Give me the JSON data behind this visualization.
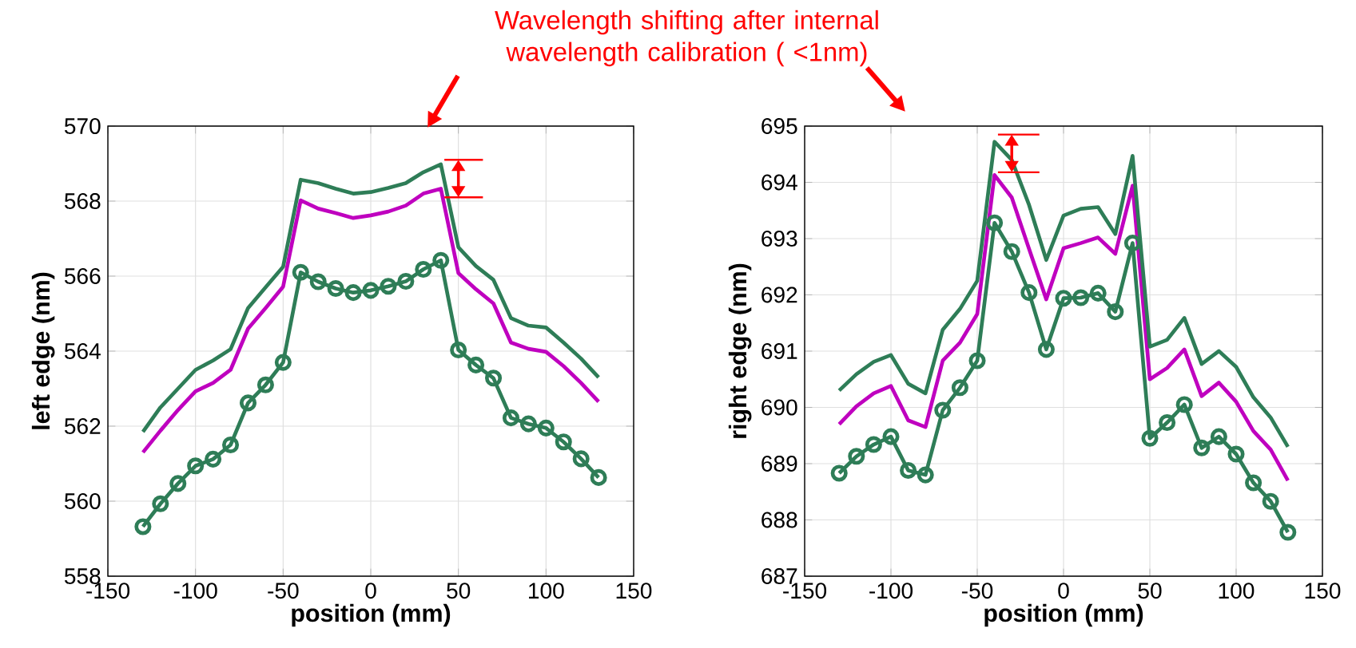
{
  "chart_data": [
    {
      "type": "line",
      "xlabel": "position (mm)",
      "ylabel": "left edge (nm)",
      "xlim": [
        -150,
        150
      ],
      "xticks": [
        -150,
        -100,
        -50,
        0,
        50,
        100,
        150
      ],
      "ylim": [
        558,
        570
      ],
      "yticks": [
        558,
        560,
        562,
        564,
        566,
        568,
        570
      ],
      "grid": true,
      "annotations": [
        "Wavelength shifting after internal wavelength calibration ( <1nm)"
      ],
      "x": [
        -130,
        -120,
        -110,
        -100,
        -90,
        -80,
        -70,
        -60,
        -50,
        -40,
        -30,
        -20,
        -10,
        0,
        10,
        20,
        30,
        40,
        50,
        60,
        70,
        80,
        90,
        100,
        110,
        120,
        130
      ],
      "series": [
        {
          "color": "#bf00bf",
          "marker": "none",
          "values": [
            561.3,
            561.88,
            562.43,
            562.93,
            563.15,
            563.5,
            564.6,
            565.15,
            565.72,
            568.02,
            567.8,
            567.68,
            567.55,
            567.62,
            567.72,
            567.88,
            568.2,
            568.33,
            566.08,
            565.65,
            565.27,
            564.23,
            564.06,
            563.98,
            563.6,
            563.15,
            562.65
          ]
        },
        {
          "color": "#2e7d57",
          "marker": "none",
          "values": [
            561.85,
            562.5,
            563.0,
            563.5,
            563.75,
            564.05,
            565.15,
            565.7,
            566.25,
            568.57,
            568.48,
            568.33,
            568.2,
            568.24,
            568.35,
            568.48,
            568.77,
            568.98,
            566.77,
            566.27,
            565.9,
            564.88,
            564.68,
            564.63,
            564.23,
            563.8,
            563.3
          ]
        },
        {
          "color": "#2e7d57",
          "marker": "circle",
          "values": [
            559.32,
            559.93,
            560.47,
            560.94,
            561.12,
            561.5,
            562.62,
            563.1,
            563.7,
            566.1,
            565.85,
            565.67,
            565.56,
            565.62,
            565.73,
            565.86,
            566.18,
            566.42,
            564.03,
            563.63,
            563.28,
            562.22,
            562.06,
            561.95,
            561.58,
            561.13,
            560.63
          ]
        }
      ]
    },
    {
      "type": "line",
      "xlabel": "position (mm)",
      "ylabel": "right edge (nm)",
      "xlim": [
        -150,
        150
      ],
      "xticks": [
        -150,
        -100,
        -50,
        0,
        50,
        100,
        150
      ],
      "ylim": [
        687,
        695
      ],
      "yticks": [
        687,
        688,
        689,
        690,
        691,
        692,
        693,
        694,
        695
      ],
      "grid": true,
      "x": [
        -130,
        -120,
        -110,
        -100,
        -90,
        -80,
        -70,
        -60,
        -50,
        -40,
        -30,
        -20,
        -10,
        0,
        10,
        20,
        30,
        40,
        50,
        60,
        70,
        80,
        90,
        100,
        110,
        120,
        130
      ],
      "series": [
        {
          "color": "#bf00bf",
          "marker": "none",
          "values": [
            689.7,
            690.02,
            690.25,
            690.38,
            689.77,
            689.65,
            690.83,
            691.15,
            691.66,
            694.13,
            693.73,
            692.82,
            691.92,
            692.83,
            692.92,
            693.02,
            692.73,
            693.94,
            690.5,
            690.7,
            691.03,
            690.2,
            690.44,
            690.1,
            689.58,
            689.25,
            688.7
          ]
        },
        {
          "color": "#2e7d57",
          "marker": "none",
          "values": [
            690.3,
            690.59,
            690.81,
            690.93,
            690.42,
            690.25,
            691.38,
            691.75,
            692.25,
            694.72,
            694.4,
            693.6,
            692.62,
            693.41,
            693.53,
            693.56,
            693.08,
            694.47,
            691.08,
            691.2,
            691.59,
            690.77,
            691.0,
            690.72,
            690.18,
            689.82,
            689.3
          ]
        },
        {
          "color": "#2e7d57",
          "marker": "circle",
          "values": [
            688.83,
            689.13,
            689.34,
            689.48,
            688.88,
            688.8,
            689.95,
            690.35,
            690.83,
            693.28,
            692.77,
            692.04,
            691.03,
            691.94,
            691.95,
            692.03,
            691.7,
            692.92,
            689.45,
            689.73,
            690.05,
            689.28,
            689.48,
            689.17,
            688.66,
            688.33,
            687.78
          ]
        }
      ]
    }
  ]
}
